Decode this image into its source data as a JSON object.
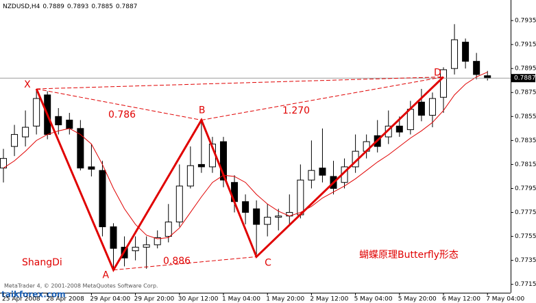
{
  "chart_data": {
    "type": "candlestick",
    "symbol": "NZDUSD,H4",
    "categories": [
      "25 Apr 2008",
      null,
      null,
      null,
      "28 Apr 2008",
      null,
      null,
      null,
      "29 Apr 04:00",
      null,
      null,
      null,
      "29 Apr 20:00",
      null,
      null,
      null,
      "30 Apr 12:00",
      null,
      null,
      null,
      "1 May 04:00",
      null,
      null,
      null,
      "1 May 20:00",
      null,
      null,
      null,
      "2 May 12:00",
      null,
      null,
      null,
      "5 May 04:00",
      null,
      null,
      null,
      "5 May 20:00",
      null,
      null,
      null,
      "6 May 12:00",
      null,
      null,
      null,
      "7 May 04:00"
    ],
    "open": [
      0.7812,
      0.783,
      0.7838,
      0.7847,
      0.7873,
      0.7855,
      0.7852,
      0.7845,
      0.7813,
      0.781,
      0.7763,
      0.7746,
      0.7743,
      0.7746,
      0.7748,
      0.7755,
      0.7767,
      0.7797,
      0.7815,
      0.7813,
      0.7834,
      0.78,
      0.7784,
      0.7778,
      0.7765,
      0.7771,
      0.7772,
      0.7773,
      0.7802,
      0.7812,
      0.7805,
      0.78,
      0.7813,
      0.7826,
      0.7839,
      0.7838,
      0.7847,
      0.7844,
      0.7867,
      0.7856,
      0.7871,
      0.7895,
      0.7917,
      0.7901,
      0.7889
    ],
    "high": [
      0.7828,
      0.7848,
      0.786,
      0.7878,
      0.7876,
      0.7862,
      0.7858,
      0.7852,
      0.7832,
      0.7818,
      0.7766,
      0.7755,
      0.7755,
      0.7755,
      0.776,
      0.7782,
      0.7815,
      0.783,
      0.7852,
      0.7838,
      0.7838,
      0.7806,
      0.779,
      0.7785,
      0.7782,
      0.7778,
      0.779,
      0.7815,
      0.7835,
      0.7845,
      0.7818,
      0.782,
      0.784,
      0.784,
      0.7852,
      0.786,
      0.7855,
      0.7868,
      0.7878,
      0.7875,
      0.7896,
      0.7932,
      0.792,
      0.7908,
      0.7893
    ],
    "low": [
      0.78,
      0.7822,
      0.783,
      0.784,
      0.7836,
      0.784,
      0.784,
      0.781,
      0.7805,
      0.7755,
      0.7727,
      0.773,
      0.7735,
      0.7728,
      0.7745,
      0.775,
      0.7763,
      0.7795,
      0.7808,
      0.7808,
      0.7796,
      0.7775,
      0.7765,
      0.774,
      0.7755,
      0.776,
      0.7765,
      0.777,
      0.7795,
      0.78,
      0.779,
      0.7795,
      0.7808,
      0.782,
      0.7825,
      0.7832,
      0.7838,
      0.784,
      0.7851,
      0.7846,
      0.7858,
      0.789,
      0.7895,
      0.7886,
      0.7885
    ],
    "close": [
      0.782,
      0.784,
      0.7846,
      0.787,
      0.784,
      0.7848,
      0.7845,
      0.7812,
      0.7811,
      0.7763,
      0.7745,
      0.7737,
      0.7746,
      0.7748,
      0.7754,
      0.7767,
      0.7797,
      0.7814,
      0.7813,
      0.7832,
      0.7802,
      0.7784,
      0.7775,
      0.7765,
      0.7771,
      0.7772,
      0.7775,
      0.7802,
      0.781,
      0.7806,
      0.7795,
      0.7813,
      0.7826,
      0.7834,
      0.783,
      0.7847,
      0.7842,
      0.7861,
      0.7856,
      0.787,
      0.7894,
      0.7919,
      0.7901,
      0.789,
      0.7887
    ],
    "ma": [
      0.7812,
      0.7818,
      0.7826,
      0.7835,
      0.784,
      0.7843,
      0.7845,
      0.784,
      0.7832,
      0.7815,
      0.7795,
      0.7778,
      0.7765,
      0.7756,
      0.7753,
      0.7754,
      0.7762,
      0.7775,
      0.7788,
      0.78,
      0.7806,
      0.7805,
      0.78,
      0.779,
      0.7782,
      0.7776,
      0.7772,
      0.7775,
      0.778,
      0.7787,
      0.7792,
      0.7797,
      0.7803,
      0.781,
      0.7817,
      0.7823,
      0.783,
      0.7837,
      0.7843,
      0.785,
      0.786,
      0.7873,
      0.7882,
      0.7888,
      0.7892
    ],
    "ma_color": "#e00000",
    "ylim": [
      0.7708,
      0.7951
    ],
    "yticks": [
      0.7715,
      0.7735,
      0.7755,
      0.7775,
      0.7795,
      0.7815,
      0.7835,
      0.7855,
      0.7875,
      0.7895,
      0.7915,
      0.7935
    ],
    "pattern": {
      "color": "#e00000",
      "points": [
        {
          "label": "X",
          "index": 3,
          "price": 0.7878
        },
        {
          "label": "A",
          "index": 10,
          "price": 0.7727
        },
        {
          "label": "B",
          "index": 18,
          "price": 0.7852
        },
        {
          "label": "C",
          "index": 23,
          "price": 0.7738
        },
        {
          "label": "D",
          "index": 40,
          "price": 0.7888
        }
      ],
      "ratios": [
        "0.786",
        "1.270",
        "0.886"
      ]
    },
    "annotations": [
      "ShangDi",
      "蝴蝶原理Butterfly形态"
    ],
    "watermark": "MetaTrader 4, © 2001-2008 MetaQuotes Software Corp.",
    "site": "taikforex.com"
  }
}
